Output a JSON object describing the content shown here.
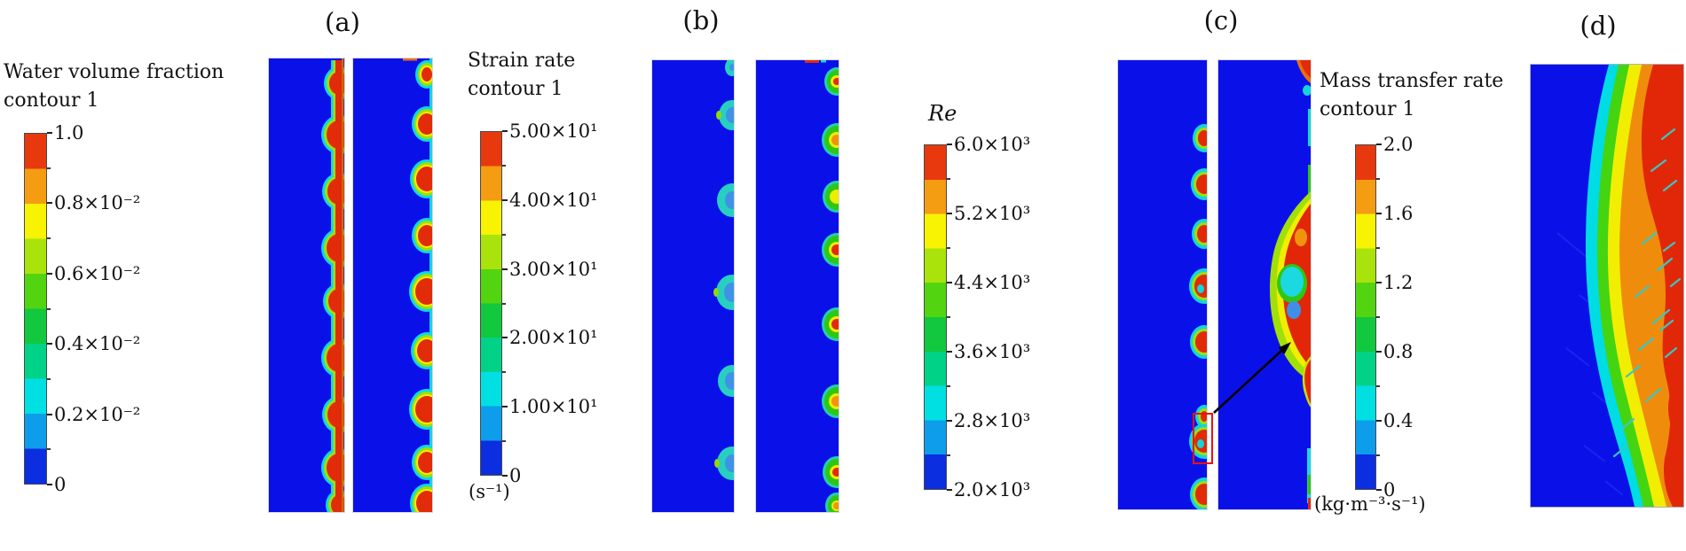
{
  "panels": {
    "a": "(a)",
    "b": "(b)",
    "c": "(c)",
    "d": "(d)"
  },
  "colorbars": {
    "water": {
      "title_lines": [
        "Water volume fraction",
        "contour 1"
      ],
      "ticks": [
        "1.0",
        "0.8×10⁻²",
        "0.6×10⁻²",
        "0.4×10⁻²",
        "0.2×10⁻²",
        "0"
      ],
      "unit": ""
    },
    "strain": {
      "title_lines": [
        "Strain rate",
        "contour 1"
      ],
      "ticks": [
        "5.00×10¹",
        "4.00×10¹",
        "3.00×10¹",
        "2.00×10¹",
        "1.00×10¹",
        "0"
      ],
      "unit": "(s⁻¹)"
    },
    "reynolds": {
      "title_lines": [
        "Re"
      ],
      "ticks": [
        "6.0×10³",
        "5.2×10³",
        "4.4×10³",
        "3.6×10³",
        "2.8×10³",
        "2.0×10³"
      ],
      "unit": ""
    },
    "mass_transfer": {
      "title_lines": [
        "Mass transfer rate",
        "contour 1"
      ],
      "ticks": [
        "2.0",
        "1.6",
        "1.2",
        "0.8",
        "0.4",
        "0"
      ],
      "unit": "(kg·m⁻³·s⁻¹)"
    }
  },
  "colormap_bands": [
    "#e7390d",
    "#f49c12",
    "#f7f303",
    "#a9e30b",
    "#53d411",
    "#11c83e",
    "#00d287",
    "#00e0e3",
    "#0d9deb",
    "#0b2ee0"
  ],
  "colors": {
    "contour_field_blue": "#0a11e8",
    "highlight_box_red": "#ea1010",
    "arrow_black": "#000000"
  }
}
